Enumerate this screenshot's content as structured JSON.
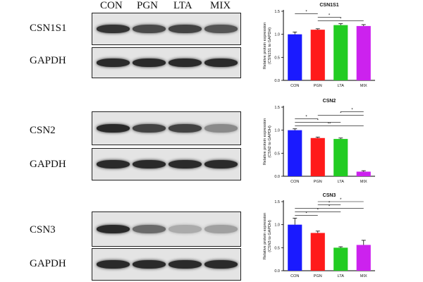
{
  "lanes": [
    "CON",
    "PGN",
    "LTA",
    "MIX"
  ],
  "blots": [
    {
      "label": "CSN1S1",
      "bands": [
        0.85,
        0.75,
        0.78,
        0.7
      ]
    },
    {
      "label": "GAPDH",
      "bands": [
        0.9,
        0.9,
        0.9,
        0.9
      ]
    },
    {
      "label": "CSN2",
      "bands": [
        0.9,
        0.78,
        0.78,
        0.45
      ]
    },
    {
      "label": "GAPDH",
      "bands": [
        0.9,
        0.9,
        0.9,
        0.9
      ]
    },
    {
      "label": "CSN3",
      "bands": [
        0.9,
        0.6,
        0.3,
        0.35
      ]
    },
    {
      "label": "GAPDH",
      "bands": [
        0.9,
        0.9,
        0.9,
        0.9
      ]
    }
  ],
  "colors": {
    "CON": "#1a1aff",
    "PGN": "#ff1a1a",
    "LTA": "#22cc22",
    "MIX": "#cc22ee"
  },
  "chart_data": [
    {
      "type": "bar",
      "title": "CSN1S1",
      "ylabel": "Relative protein expression",
      "ylabel2": "(CSN1S1 to GAPDH)",
      "categories": [
        "CON",
        "PGN",
        "LTA",
        "MIX"
      ],
      "values": [
        1.0,
        1.1,
        1.2,
        1.18
      ],
      "errors": [
        0.05,
        0.02,
        0.03,
        0.03
      ],
      "ylim": [
        0,
        1.5
      ],
      "yticks": [
        "0.0",
        "0.5",
        "1.0",
        "1.5"
      ],
      "significance": [
        {
          "from": 0,
          "to": 1,
          "label": "*"
        },
        {
          "from": 1,
          "to": 2,
          "label": "*"
        },
        {
          "from": 1,
          "to": 3,
          "label": "*"
        }
      ]
    },
    {
      "type": "bar",
      "title": "CSN2",
      "ylabel": "Relative protein expression",
      "ylabel2": "(CSN2 to GAPDH)",
      "categories": [
        "CON",
        "PGN",
        "LTA",
        "MIX"
      ],
      "values": [
        1.0,
        0.83,
        0.81,
        0.1
      ],
      "errors": [
        0.03,
        0.02,
        0.02,
        0.02
      ],
      "ylim": [
        0,
        1.5
      ],
      "yticks": [
        "0.0",
        "0.5",
        "1.0",
        "1.5"
      ],
      "significance": [
        {
          "from": 2,
          "to": 3,
          "label": "*"
        },
        {
          "from": 1,
          "to": 3,
          "label": "*"
        },
        {
          "from": 0,
          "to": 1,
          "label": "*"
        },
        {
          "from": 0,
          "to": 2,
          "label": "*"
        },
        {
          "from": 0,
          "to": 3,
          "label": "**"
        }
      ]
    },
    {
      "type": "bar",
      "title": "CSN3",
      "ylabel": "Relative protein expression",
      "ylabel2": "(CSN3 to GAPDH)",
      "categories": [
        "CON",
        "PGN",
        "LTA",
        "MIX"
      ],
      "values": [
        1.0,
        0.82,
        0.5,
        0.56
      ],
      "errors": [
        0.14,
        0.04,
        0.02,
        0.1
      ],
      "ylim": [
        0,
        1.5
      ],
      "yticks": [
        "0.0",
        "0.5",
        "1.0",
        "1.5"
      ],
      "significance": [
        {
          "from": 1,
          "to": 3,
          "label": "*"
        },
        {
          "from": 1,
          "to": 2,
          "label": "*"
        },
        {
          "from": 0,
          "to": 3,
          "label": "*"
        },
        {
          "from": 0,
          "to": 2,
          "label": "*"
        },
        {
          "from": 0,
          "to": 1,
          "label": "*"
        }
      ]
    }
  ]
}
